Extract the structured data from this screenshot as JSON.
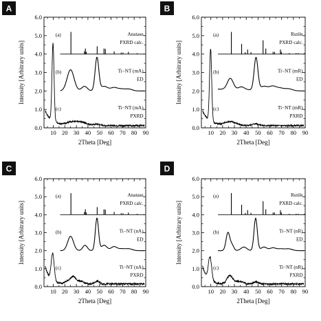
{
  "chart_data": [
    {
      "panel": "A",
      "type": "line",
      "xlabel": "2Theta [Deg]",
      "ylabel": "Intensity [Arbitrary units]",
      "xlim": [
        2,
        90
      ],
      "ylim": [
        0,
        6
      ],
      "xticks": [
        "10",
        "20",
        "30",
        "40",
        "50",
        "60",
        "70",
        "80",
        "90"
      ],
      "yticks": [
        "0.0",
        "1.0",
        "2.0",
        "3.0",
        "4.0",
        "5.0",
        "6.0"
      ],
      "annotations": [
        {
          "tag": "(a)",
          "line1": "Anatase",
          "line2": "PXRD calc."
        },
        {
          "tag": "(b)",
          "line1": "Ti−NT (mA)",
          "line2": "ED"
        },
        {
          "tag": "(c)",
          "line1": "Ti−NT (mA)",
          "line2": "PXRD"
        }
      ],
      "series": [
        {
          "kind": "sticks",
          "baseline": 4.0,
          "peaks": [
            [
              25.3,
              1.2
            ],
            [
              37.0,
              0.15
            ],
            [
              37.8,
              0.3
            ],
            [
              38.6,
              0.12
            ],
            [
              48.0,
              0.42
            ],
            [
              53.9,
              0.3
            ],
            [
              55.1,
              0.28
            ],
            [
              62.7,
              0.15
            ],
            [
              68.8,
              0.08
            ],
            [
              70.3,
              0.08
            ],
            [
              75.0,
              0.12
            ],
            [
              82.7,
              0.05
            ]
          ]
        },
        {
          "kind": "profile",
          "x0": 16,
          "x1": 89,
          "base": 2.0,
          "tail": [
            [
              16,
              2.0
            ],
            [
              89,
              2.0
            ]
          ],
          "peaks": [
            [
              25.0,
              1.15,
              3.0
            ],
            [
              37.0,
              0.25,
              2.5
            ],
            [
              47.8,
              1.8,
              1.6
            ],
            [
              54.0,
              0.25,
              3.0
            ],
            [
              62.5,
              0.18,
              3.0
            ],
            [
              69.0,
              0.1,
              3.0
            ],
            [
              75.5,
              0.1,
              3.0
            ]
          ]
        },
        {
          "kind": "pxrd",
          "x0": 3,
          "x1": 89,
          "base": 0.12,
          "noise": 0.04,
          "low": [
            0.8,
            6
          ],
          "peaks": [
            [
              9.8,
              4.2,
              0.9
            ],
            [
              24.5,
              0.15,
              4.0
            ],
            [
              33.5,
              0.2,
              5.0
            ],
            [
              48.0,
              0.08,
              3.0
            ]
          ]
        }
      ]
    },
    {
      "panel": "B",
      "type": "line",
      "xlabel": "2Theta [Deg]",
      "ylabel": "Intensity [Arbitrary units]",
      "xlim": [
        2,
        90
      ],
      "ylim": [
        0,
        6
      ],
      "xticks": [
        "10",
        "20",
        "30",
        "40",
        "50",
        "60",
        "70",
        "80",
        "90"
      ],
      "yticks": [
        "0.0",
        "1.0",
        "2.0",
        "3.0",
        "4.0",
        "5.0",
        "6.0"
      ],
      "annotations": [
        {
          "tag": "(a)",
          "line1": "Rutile",
          "line2": "PXRD calc."
        },
        {
          "tag": "(b)",
          "line1": "Ti−NT (mR)",
          "line2": "ED"
        },
        {
          "tag": "(c)",
          "line1": "Ti−NT (mR)",
          "line2": "PXRD"
        }
      ],
      "series": [
        {
          "kind": "sticks",
          "baseline": 4.0,
          "peaks": [
            [
              27.4,
              1.2
            ],
            [
              36.1,
              0.55
            ],
            [
              39.2,
              0.1
            ],
            [
              41.2,
              0.25
            ],
            [
              44.0,
              0.1
            ],
            [
              54.3,
              0.75
            ],
            [
              56.6,
              0.3
            ],
            [
              62.8,
              0.12
            ],
            [
              64.0,
              0.12
            ],
            [
              69.0,
              0.25
            ],
            [
              69.8,
              0.12
            ],
            [
              76.5,
              0.05
            ],
            [
              82.3,
              0.05
            ],
            [
              84.2,
              0.05
            ],
            [
              89.5,
              0.05
            ]
          ]
        },
        {
          "kind": "profile",
          "x0": 16,
          "x1": 89,
          "base": 2.05,
          "tail": [
            [
              16,
              2.1
            ],
            [
              89,
              2.0
            ]
          ],
          "peaks": [
            [
              26.5,
              0.6,
              2.5
            ],
            [
              36.0,
              0.15,
              2.5
            ],
            [
              48.3,
              1.75,
              1.6
            ],
            [
              55.0,
              0.2,
              3.0
            ],
            [
              62.5,
              0.22,
              3.0
            ],
            [
              69.0,
              0.12,
              3.0
            ],
            [
              76.0,
              0.1,
              3.0
            ]
          ]
        },
        {
          "kind": "pxrd",
          "x0": 3,
          "x1": 89,
          "base": 0.12,
          "noise": 0.04,
          "low": [
            0.8,
            6
          ],
          "peaks": [
            [
              9.8,
              3.9,
              0.9
            ],
            [
              24.5,
              0.12,
              4.0
            ],
            [
              29.0,
              0.12,
              4.0
            ],
            [
              48.0,
              0.1,
              3.0
            ]
          ]
        }
      ]
    },
    {
      "panel": "C",
      "type": "line",
      "xlabel": "2Theta [Deg]",
      "ylabel": "Intensity [Arbitrary units]",
      "xlim": [
        2,
        90
      ],
      "ylim": [
        0,
        6
      ],
      "xticks": [
        "10",
        "20",
        "30",
        "40",
        "50",
        "60",
        "70",
        "80",
        "90"
      ],
      "yticks": [
        "0.0",
        "1.0",
        "2.0",
        "3.0",
        "4.0",
        "5.0",
        "6.0"
      ],
      "annotations": [
        {
          "tag": "(a)",
          "line1": "Anatase",
          "line2": "PXRD calc."
        },
        {
          "tag": "(b)",
          "line1": "Ti−NT (nA)",
          "line2": "ED"
        },
        {
          "tag": "(c)",
          "line1": "Ti−NT (nA)",
          "line2": "PXRD"
        }
      ],
      "series": [
        {
          "kind": "sticks",
          "baseline": 4.0,
          "peaks": [
            [
              25.3,
              1.2
            ],
            [
              37.0,
              0.15
            ],
            [
              37.8,
              0.3
            ],
            [
              38.6,
              0.12
            ],
            [
              48.0,
              0.42
            ],
            [
              53.9,
              0.3
            ],
            [
              55.1,
              0.28
            ],
            [
              62.7,
              0.15
            ],
            [
              68.8,
              0.08
            ],
            [
              70.3,
              0.08
            ],
            [
              75.0,
              0.12
            ],
            [
              82.7,
              0.05
            ]
          ]
        },
        {
          "kind": "profile",
          "x0": 16,
          "x1": 89,
          "base": 2.0,
          "tail": [
            [
              16,
              2.0
            ],
            [
              89,
              2.0
            ]
          ],
          "peaks": [
            [
              25.0,
              0.8,
              2.5
            ],
            [
              37.5,
              0.3,
              2.0
            ],
            [
              47.8,
              1.8,
              1.4
            ],
            [
              54.0,
              0.3,
              2.5
            ],
            [
              62.5,
              0.22,
              2.5
            ],
            [
              69.0,
              0.1,
              3.0
            ],
            [
              75.5,
              0.1,
              3.0
            ]
          ]
        },
        {
          "kind": "pxrd",
          "x0": 3,
          "x1": 89,
          "base": 0.15,
          "noise": 0.05,
          "low": [
            1.0,
            4
          ],
          "peaks": [
            [
              9.5,
              1.5,
              1.3
            ],
            [
              24.5,
              0.2,
              3.5
            ],
            [
              27.5,
              0.25,
              2.0
            ],
            [
              33.0,
              0.15,
              3.0
            ],
            [
              48.0,
              0.15,
              2.0
            ]
          ]
        }
      ]
    },
    {
      "panel": "D",
      "type": "line",
      "xlabel": "2Theta [Deg]",
      "ylabel": "Intensity [Arbitrary units]",
      "xlim": [
        2,
        90
      ],
      "ylim": [
        0,
        6
      ],
      "xticks": [
        "10",
        "20",
        "30",
        "40",
        "50",
        "60",
        "70",
        "80",
        "90"
      ],
      "yticks": [
        "0.0",
        "1.0",
        "2.0",
        "3.0",
        "4.0",
        "5.0",
        "6.0"
      ],
      "annotations": [
        {
          "tag": "(a)",
          "line1": "Rutile",
          "line2": "PXRD calc."
        },
        {
          "tag": "(b)",
          "line1": "Ti−NT (nR)",
          "line2": "ED"
        },
        {
          "tag": "(c)",
          "line1": "Ti−NT (nR)",
          "line2": "PXRD"
        }
      ],
      "series": [
        {
          "kind": "sticks",
          "baseline": 4.0,
          "peaks": [
            [
              27.4,
              1.2
            ],
            [
              36.1,
              0.55
            ],
            [
              39.2,
              0.1
            ],
            [
              41.2,
              0.25
            ],
            [
              44.0,
              0.1
            ],
            [
              54.3,
              0.75
            ],
            [
              56.6,
              0.3
            ],
            [
              62.8,
              0.12
            ],
            [
              64.0,
              0.12
            ],
            [
              69.0,
              0.25
            ],
            [
              69.8,
              0.12
            ],
            [
              76.5,
              0.05
            ],
            [
              82.3,
              0.05
            ],
            [
              84.2,
              0.05
            ],
            [
              89.5,
              0.05
            ]
          ]
        },
        {
          "kind": "profile",
          "x0": 16,
          "x1": 89,
          "base": 2.0,
          "tail": [
            [
              16,
              2.0
            ],
            [
              89,
              2.0
            ]
          ],
          "peaks": [
            [
              24.5,
              1.0,
              1.6
            ],
            [
              28.0,
              0.3,
              1.5
            ],
            [
              38.0,
              0.2,
              2.5
            ],
            [
              48.0,
              1.8,
              1.4
            ],
            [
              55.0,
              0.2,
              2.5
            ],
            [
              62.5,
              0.15,
              2.5
            ],
            [
              69.0,
              0.1,
              3.0
            ],
            [
              76.0,
              0.1,
              3.0
            ]
          ]
        },
        {
          "kind": "pxrd",
          "x0": 3,
          "x1": 89,
          "base": 0.15,
          "noise": 0.05,
          "low": [
            1.0,
            4
          ],
          "peaks": [
            [
              9.3,
              1.3,
              1.4
            ],
            [
              25.0,
              0.3,
              2.0
            ],
            [
              27.5,
              0.25,
              2.0
            ],
            [
              34.0,
              0.15,
              3.0
            ],
            [
              48.0,
              0.12,
              2.0
            ]
          ]
        }
      ]
    }
  ]
}
